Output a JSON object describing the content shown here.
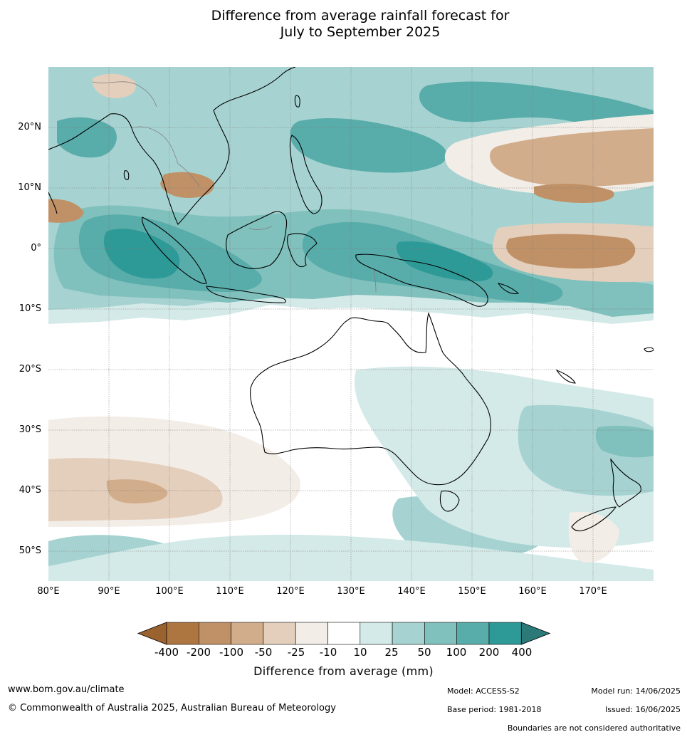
{
  "title": {
    "line1": "Difference from average rainfall forecast for",
    "line2": "July to September 2025"
  },
  "map": {
    "lat_labels": [
      "20°N",
      "10°N",
      "0°",
      "10°S",
      "20°S",
      "30°S",
      "40°S",
      "50°S"
    ],
    "lon_labels": [
      "80°E",
      "90°E",
      "100°E",
      "110°E",
      "120°E",
      "130°E",
      "140°E",
      "150°E",
      "160°E",
      "170°E"
    ],
    "lat_values": [
      20,
      10,
      0,
      -10,
      -20,
      -30,
      -40,
      -50
    ],
    "lon_values": [
      80,
      90,
      100,
      110,
      120,
      130,
      140,
      150,
      160,
      170
    ],
    "extent": {
      "lon_min": 80,
      "lon_max": 180,
      "lat_min": -55,
      "lat_max": 30
    },
    "landmass_color": "#000000",
    "boundary_color": "#808080"
  },
  "legend": {
    "title": "Difference from average (mm)",
    "tick_labels": [
      "-400",
      "-200",
      "-100",
      "-50",
      "-25",
      "-10",
      "10",
      "25",
      "50",
      "100",
      "200",
      "400"
    ],
    "colors": [
      "#99622e",
      "#ad7540",
      "#c09166",
      "#d1ad8b",
      "#e4cfbc",
      "#f3ede7",
      "#ffffff",
      "#d4eae8",
      "#a6d3d1",
      "#80c0bd",
      "#58acaa",
      "#2e9a97",
      "#2b7a78"
    ]
  },
  "footer": {
    "website": "www.bom.gov.au/climate",
    "copyright": "© Commonwealth of Australia 2025, Australian Bureau of Meteorology",
    "model": "Model: ACCESS-S2",
    "base_period": "Base period: 1981-2018",
    "model_run": "Model run: 14/06/2025",
    "issued": "Issued: 16/06/2025",
    "disclaimer": "Boundaries are not considered authoritative"
  }
}
